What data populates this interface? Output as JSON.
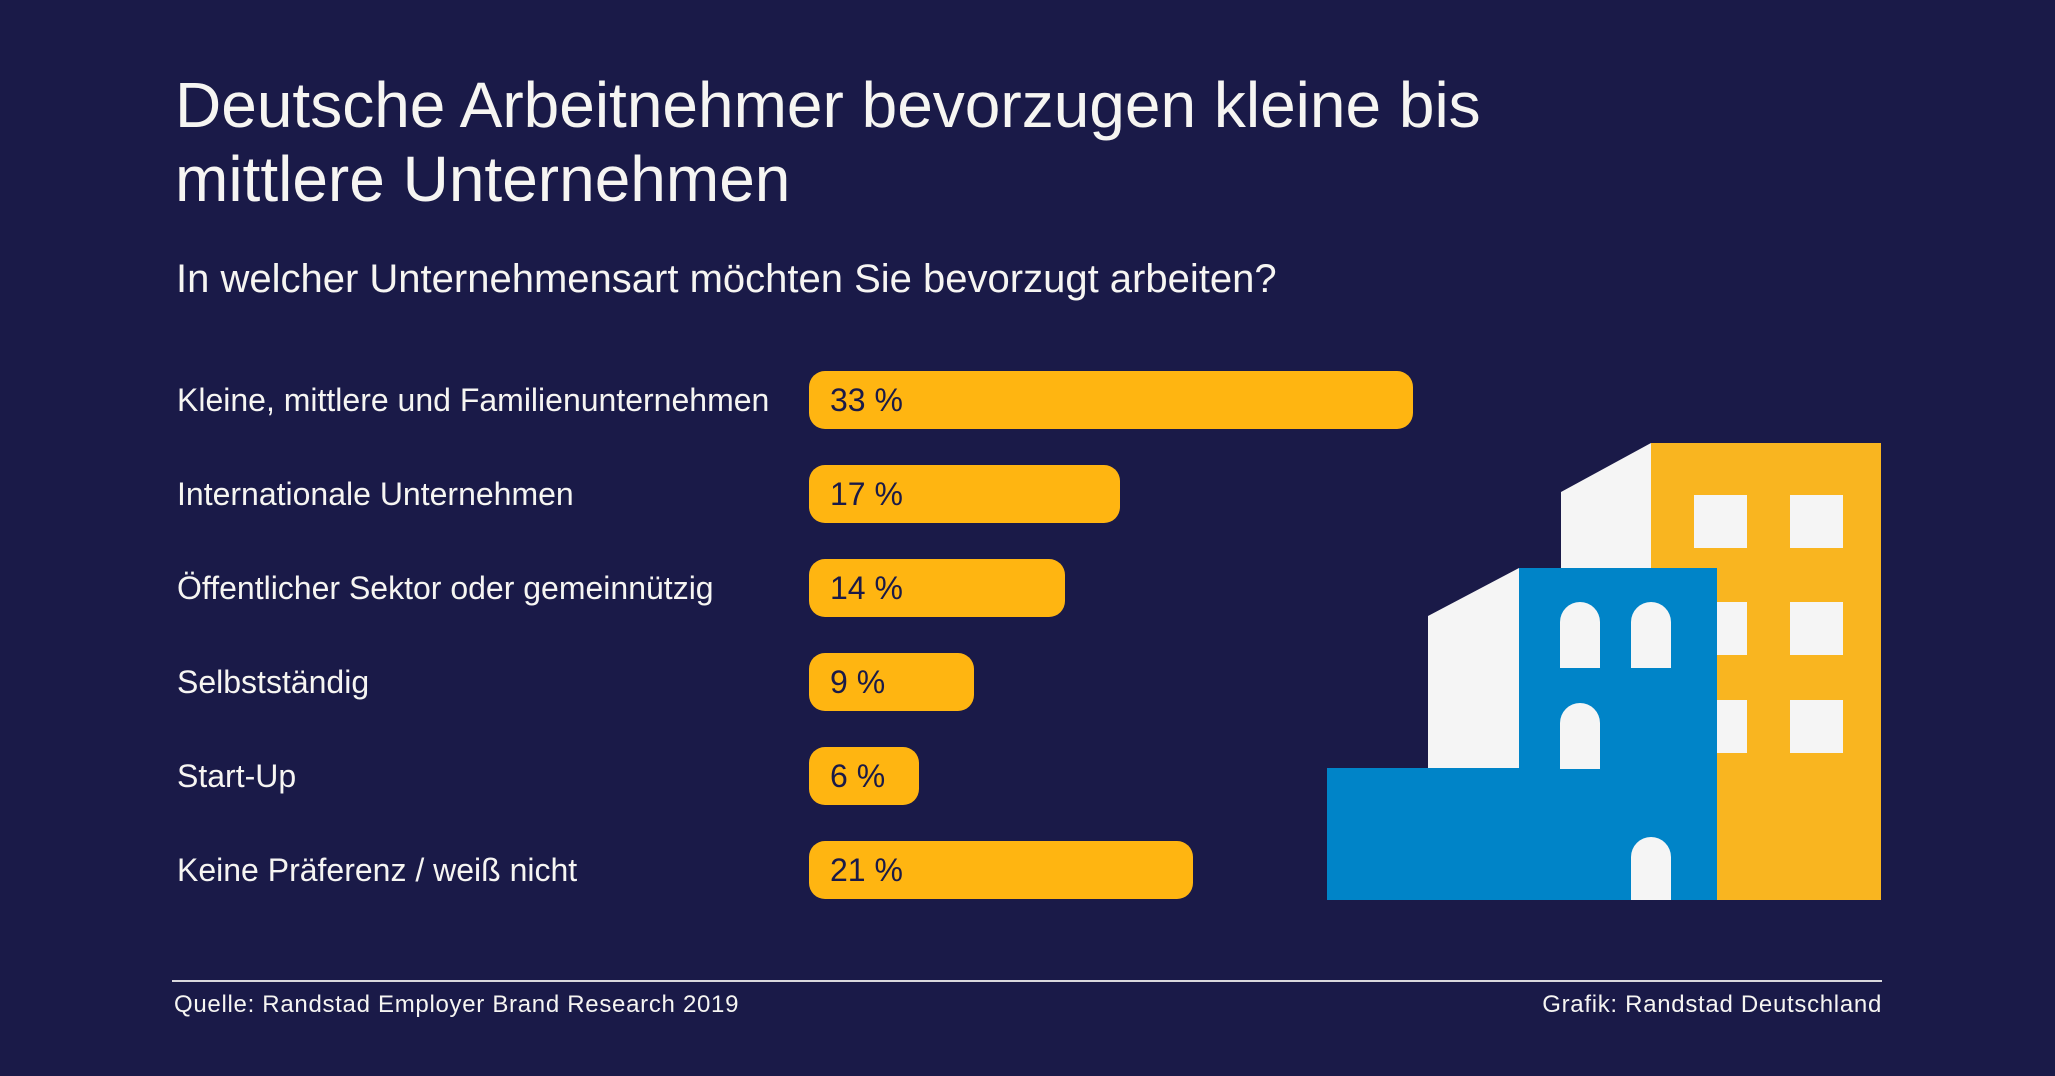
{
  "chart_data": {
    "type": "bar",
    "orientation": "horizontal",
    "title": "Deutsche Arbeitnehmer bevorzugen kleine bis mittlere Unternehmen",
    "title_lines": [
      "Deutsche Arbeitnehmer bevorzugen kleine bis",
      "mittlere Unternehmen"
    ],
    "subtitle": "In welcher Unternehmensart möchten Sie bevorzugt arbeiten?",
    "categories": [
      "Kleine, mittlere und Familienunternehmen",
      "Internationale Unternehmen",
      "Öffentlicher Sektor oder gemeinnützig",
      "Selbstständig",
      "Start-Up",
      "Keine Präferenz / weiß nicht"
    ],
    "values": [
      33,
      17,
      14,
      9,
      6,
      21
    ],
    "value_labels": [
      "33 %",
      "17 %",
      "14 %",
      "9 %",
      "6 %",
      "21 %"
    ],
    "unit": "%",
    "xlabel": "",
    "ylabel": "",
    "grid": false,
    "legend": "none",
    "bar_color": "#ffb511"
  },
  "illustration": {
    "name": "buildings-illustration",
    "colors": {
      "background": "#1a1a48",
      "yellow": "#f9b520",
      "blue": "#0084c8",
      "white": "#f5f5f5"
    }
  },
  "footer": {
    "source": "Quelle: Randstad Employer Brand Research 2019",
    "credit": "Grafik: Randstad Deutschland"
  }
}
